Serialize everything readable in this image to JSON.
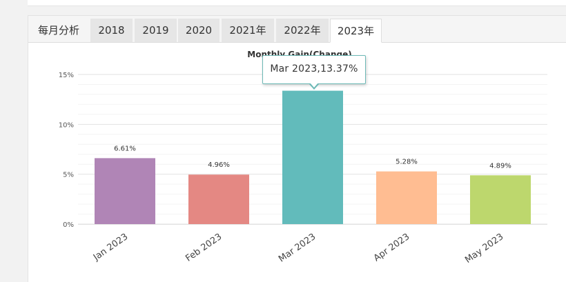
{
  "tabs": [
    {
      "label": "每月分析"
    },
    {
      "label": "2018"
    },
    {
      "label": "2019"
    },
    {
      "label": "2020"
    },
    {
      "label": "2021年"
    },
    {
      "label": "2022年"
    },
    {
      "label": "2023年"
    }
  ],
  "active_tab": "2023年",
  "tooltip": {
    "text": "Mar 2023,13.37%"
  },
  "chart_data": {
    "type": "bar",
    "title": "Monthly Gain(Change)",
    "categories": [
      "Jan 2023",
      "Feb 2023",
      "Mar 2023",
      "Apr 2023",
      "May 2023"
    ],
    "values": [
      6.61,
      4.96,
      13.37,
      5.28,
      4.89
    ],
    "data_labels": [
      "6.61%",
      "4.96%",
      "",
      "5.28%",
      "4.89%"
    ],
    "colors": [
      "#b085b6",
      "#e48883",
      "#62bbbb",
      "#ffbd92",
      "#bdd76d"
    ],
    "ylim": [
      0,
      15
    ],
    "yticks": [
      0,
      5,
      10,
      15
    ],
    "ytick_labels": [
      "0%",
      "5%",
      "10%",
      "15%"
    ],
    "grid": true,
    "xlabel": "",
    "ylabel": ""
  }
}
